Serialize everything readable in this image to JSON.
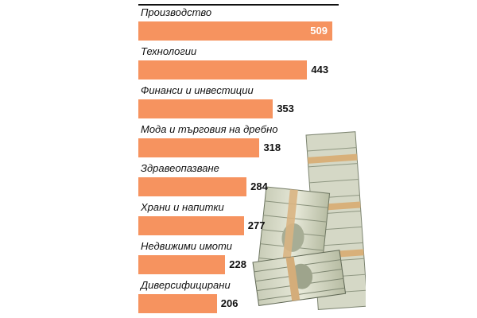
{
  "chart_data": {
    "type": "bar",
    "orientation": "horizontal",
    "title": "",
    "xlabel": "",
    "ylabel": "",
    "categories": [
      "Производство",
      "Технологии",
      "Финанси и инвестиции",
      "Мода и търговия на дребно",
      "Здравеопазване",
      "Храни и напитки",
      "Недвижими имоти",
      "Диверсифицирани"
    ],
    "values": [
      509,
      443,
      353,
      318,
      284,
      277,
      228,
      206
    ],
    "value_labels": [
      "509",
      "443",
      "353",
      "318",
      "284",
      "277",
      "228",
      "206"
    ],
    "xlim": [
      0,
      509
    ],
    "grid": false,
    "legend": "none",
    "bar_color": "#f6935f",
    "label_color": "#111111",
    "inside_label_color": "#ffffff",
    "decoration_icon": "money-stack-icon"
  }
}
